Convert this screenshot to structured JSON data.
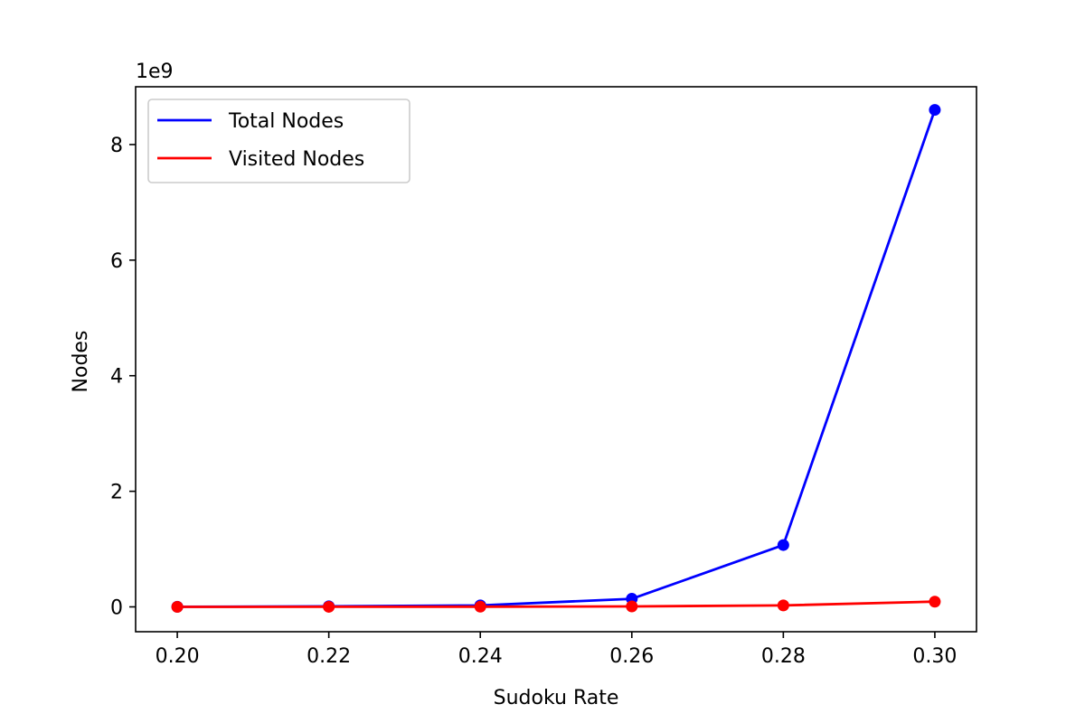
{
  "chart_data": {
    "type": "line",
    "x": [
      0.2,
      0.22,
      0.24,
      0.26,
      0.28,
      0.3
    ],
    "x_tick_labels": [
      "0.20",
      "0.22",
      "0.24",
      "0.26",
      "0.28",
      "0.30"
    ],
    "y_ticks": [
      0,
      2,
      4,
      6,
      8
    ],
    "y_tick_labels": [
      "0",
      "2",
      "4",
      "6",
      "8"
    ],
    "y_multiplier_label": "1e9",
    "y_multiplier": 1000000000,
    "xlabel": "Sudoku Rate",
    "ylabel": "Nodes",
    "xlim": [
      0.1945,
      0.3055
    ],
    "ylim": [
      -0.43,
      9.0
    ],
    "grid": false,
    "legend_position": "upper-left",
    "series": [
      {
        "name": "Total Nodes",
        "color": "#0000ff",
        "values": [
          0.002,
          0.01,
          0.025,
          0.14,
          1.07,
          8.6
        ]
      },
      {
        "name": "Visited Nodes",
        "color": "#ff0000",
        "values": [
          0.0,
          0.001,
          0.003,
          0.008,
          0.025,
          0.09
        ]
      }
    ]
  }
}
